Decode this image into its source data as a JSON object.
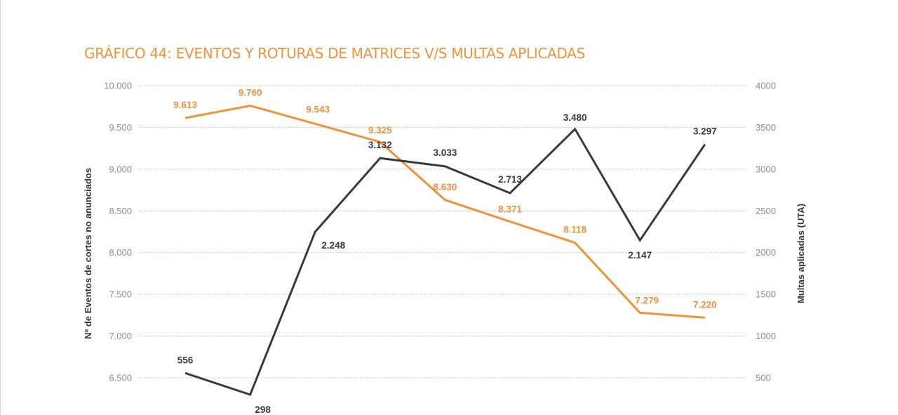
{
  "chart_data": {
    "type": "line",
    "title": "GRÁFICO 44: EVENTOS Y ROTURAS DE MATRICES V/S MULTAS APLICADAS",
    "ylabel_left": "Nº de  Eventos de cortes no anunciados",
    "ylabel_right": "Multas aplicadas (UTA)",
    "y_left": {
      "lim": [
        6500,
        10000
      ],
      "ticks": [
        6500,
        7000,
        7500,
        8000,
        8500,
        9000,
        9500,
        10000
      ],
      "tick_labels": [
        "6.500",
        "7.000",
        "7.500",
        "8.000",
        "8.500",
        "9.000",
        "9.500",
        "10.000"
      ]
    },
    "y_right": {
      "lim": [
        500,
        4000
      ],
      "ticks": [
        500,
        1000,
        1500,
        2000,
        2500,
        3000,
        3500,
        4000
      ],
      "tick_labels": [
        "500",
        "1000",
        "1500",
        "2000",
        "2500",
        "3000",
        "3500",
        "4000"
      ]
    },
    "grid": true,
    "series": [
      {
        "axis": "left",
        "color": "#f0923a",
        "values": [
          9613,
          9760,
          9543,
          9325,
          8630,
          8371,
          8118,
          7279,
          7220
        ],
        "labels": [
          "9.613",
          "9.760",
          "9.543",
          "9.325",
          "8.630",
          "8.371",
          "8.118",
          "7.279",
          "7.220"
        ]
      },
      {
        "axis": "right",
        "color": "#3a3a3a",
        "values": [
          556,
          298,
          2248,
          3132,
          3033,
          2713,
          3480,
          2147,
          3297
        ],
        "labels": [
          "556",
          "298",
          "2.248",
          "3.132",
          "3.033",
          "2.713",
          "3.480",
          "2.147",
          "3.297"
        ]
      }
    ]
  }
}
